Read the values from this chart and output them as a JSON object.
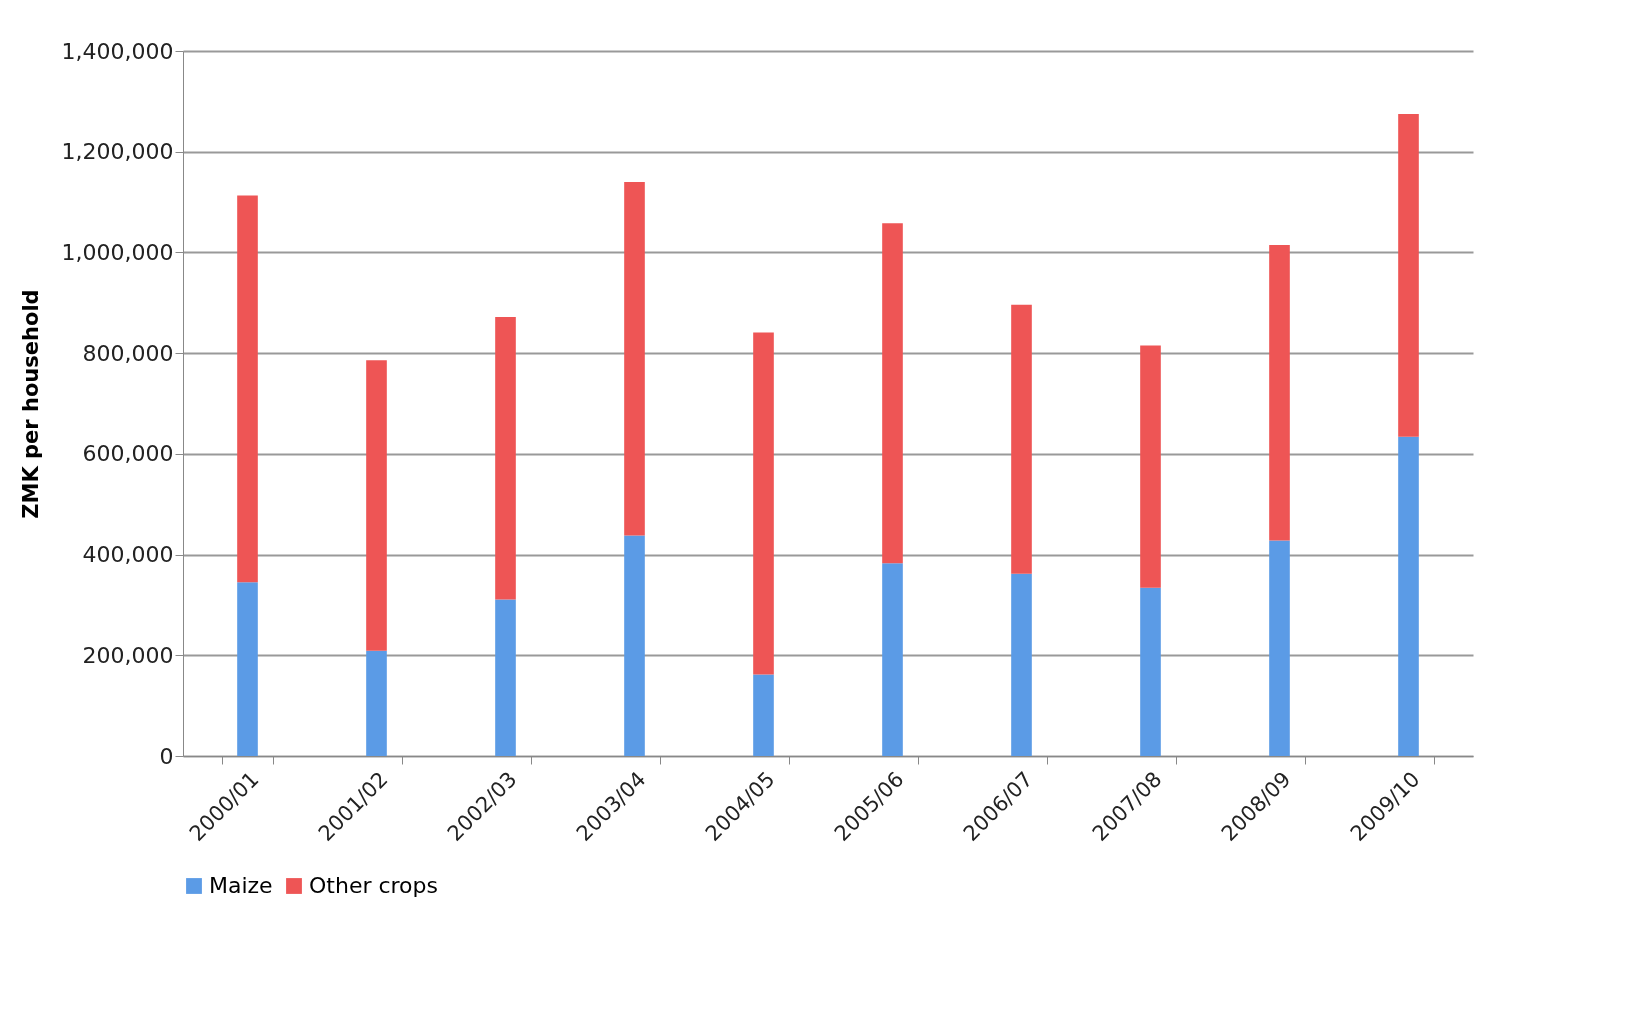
{
  "chart_data": {
    "type": "bar",
    "ylabel": "ZMK per household",
    "stacked": true,
    "grid": "y",
    "legend": "bottom",
    "categories": [
      "2000/01",
      "2001/02",
      "2002/03",
      "2003/04",
      "2004/05",
      "2005/06",
      "2006/07",
      "2007/08",
      "2008/09",
      "2009/10"
    ],
    "series": [
      {
        "name": "Maize",
        "color": "#5b9be6",
        "values": [
          345000,
          209000,
          311000,
          438000,
          162000,
          383000,
          362000,
          334000,
          428000,
          634000
        ]
      },
      {
        "name": "Other crops",
        "color": "#ee5555",
        "values": [
          768000,
          577000,
          561000,
          702000,
          679000,
          675000,
          534000,
          481000,
          587000,
          641000
        ]
      }
    ],
    "ylim": [
      0,
      1400000
    ],
    "yticks": [
      {
        "value": 0,
        "label": "0"
      },
      {
        "value": 200000,
        "label": "200,000"
      },
      {
        "value": 400000,
        "label": "400,000"
      },
      {
        "value": 600000,
        "label": "600,000"
      },
      {
        "value": 800000,
        "label": "800,000"
      },
      {
        "value": 1000000,
        "label": "1,000,000"
      },
      {
        "value": 1200000,
        "label": "1,200,000"
      },
      {
        "value": 1400000,
        "label": "1,400,000"
      }
    ]
  }
}
